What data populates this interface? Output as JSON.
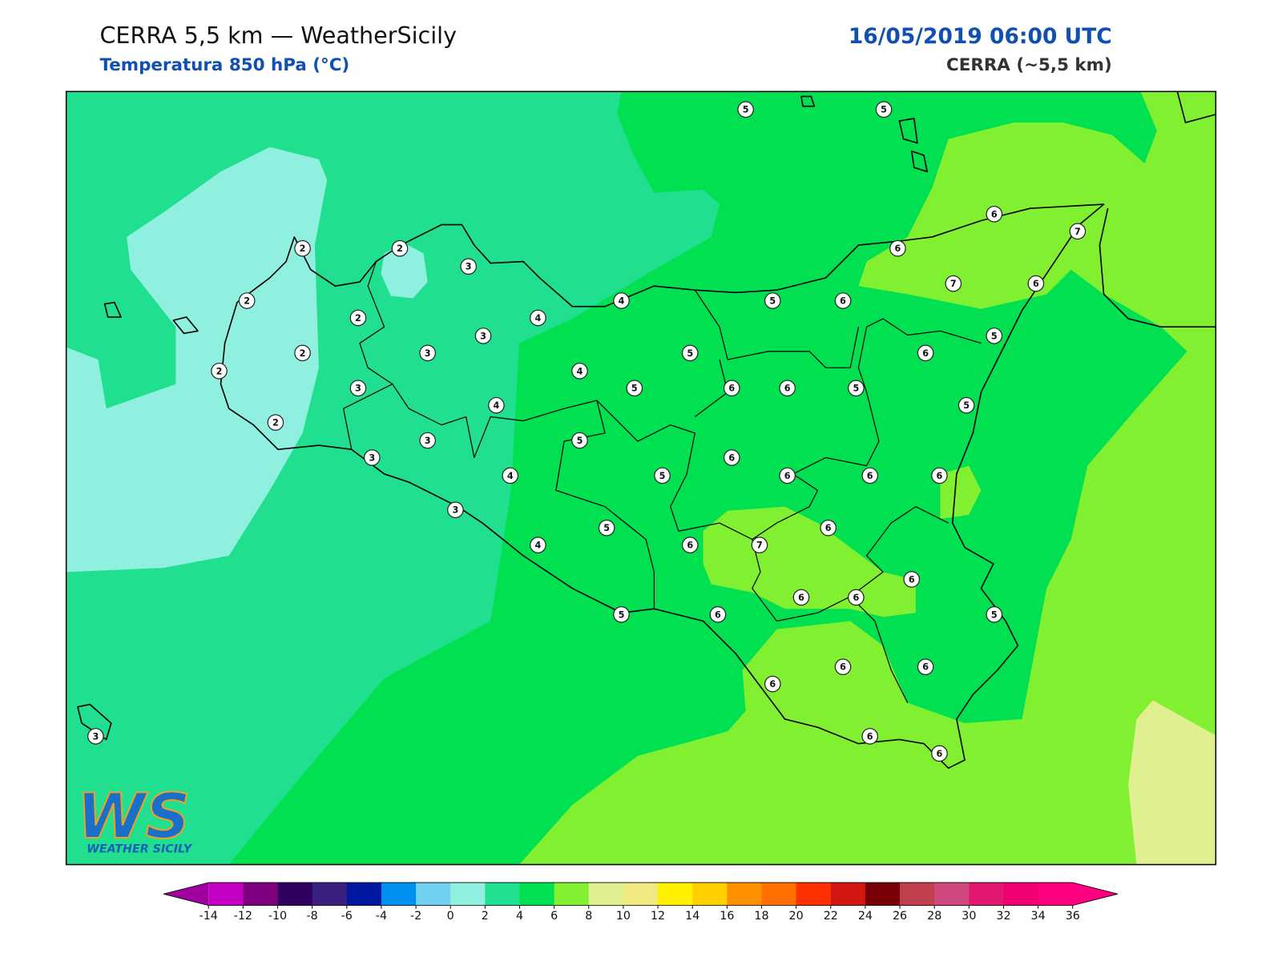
{
  "header": {
    "title": "CERRA 5,5 km — WeatherSicily",
    "subtitle": "Temperatura 850 hPa (°C)",
    "date": "16/05/2019 06:00 UTC",
    "model": "CERRA (~5,5 km)"
  },
  "stations": [
    5,
    5,
    6,
    7,
    6,
    7,
    6,
    2,
    2,
    3,
    2,
    4,
    5,
    6,
    2,
    4,
    3,
    5,
    2,
    3,
    5,
    6,
    2,
    4,
    3,
    5,
    6,
    6,
    5,
    5,
    4,
    2,
    3,
    5,
    3,
    6,
    4,
    5,
    6,
    6,
    6,
    3,
    5,
    6,
    4,
    6,
    7,
    6,
    6,
    6,
    5,
    6,
    5,
    6,
    6,
    6,
    6,
    6,
    3
  ],
  "logo": {
    "text": "WS",
    "caption": "WEATHER SICILY"
  },
  "colorbar": {
    "ticks": [
      -14,
      -12,
      -10,
      -8,
      -6,
      -4,
      -2,
      0,
      2,
      4,
      6,
      8,
      10,
      12,
      14,
      16,
      18,
      20,
      22,
      24,
      26,
      28,
      30,
      32,
      34,
      36
    ],
    "colors": [
      "#c400c4",
      "#800080",
      "#300060",
      "#3c2080",
      "#0018a0",
      "#0090f0",
      "#70d0f0",
      "#90f0e0",
      "#20e090",
      "#00e050",
      "#80f030",
      "#e0f090",
      "#f0e880",
      "#fff000",
      "#ffd000",
      "#ff9000",
      "#ff7000",
      "#ff3000",
      "#d01810",
      "#780008",
      "#c04050",
      "#d04880",
      "#e01870",
      "#f00070",
      "#ff0080"
    ],
    "under_color": "#a000a0",
    "over_color": "#ff0080"
  }
}
